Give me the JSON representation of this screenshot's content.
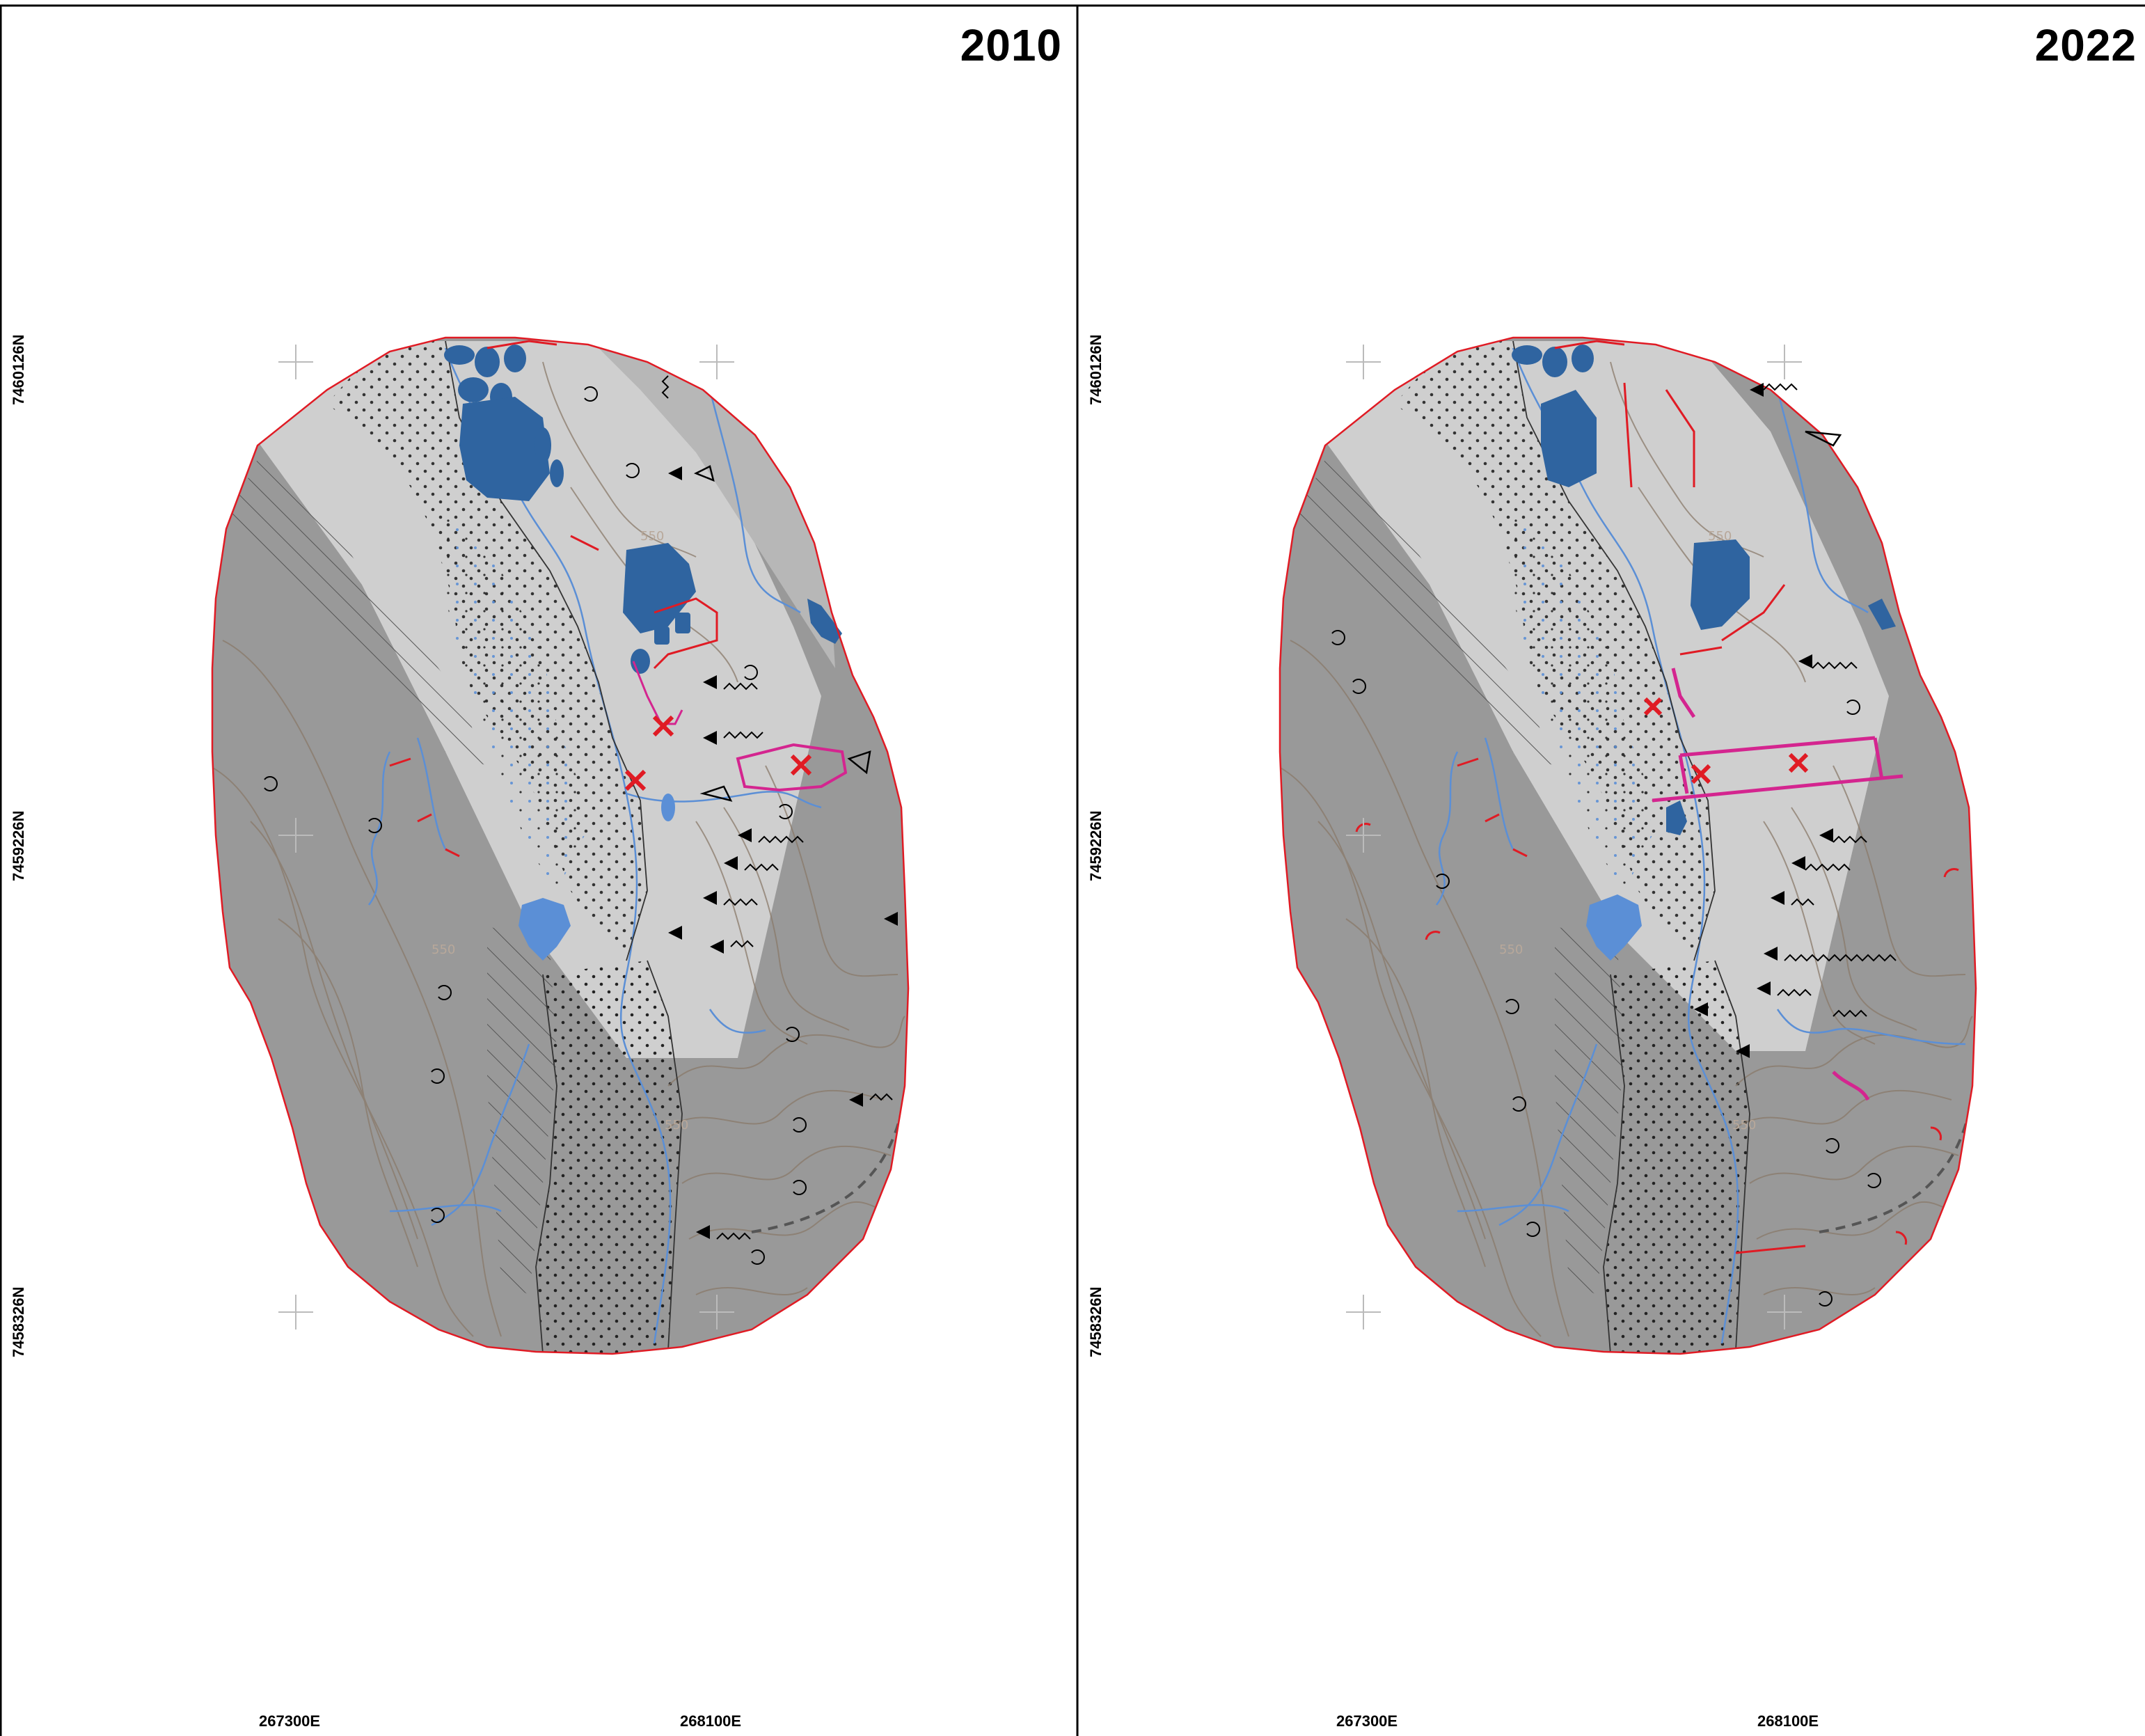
{
  "panels": [
    {
      "year": "2010",
      "northings": [
        "7460126N",
        "7459226N",
        "7458326N"
      ],
      "eastings": [
        "267300E",
        "268100E"
      ],
      "contour_labels": [
        "550",
        "550",
        "550"
      ]
    },
    {
      "year": "2022",
      "northings": [
        "7460126N",
        "7459226N",
        "7458326N"
      ],
      "eastings": [
        "267300E",
        "268100E"
      ],
      "contour_labels": [
        "550",
        "550",
        "550"
      ]
    }
  ],
  "colors": {
    "outer_terrain": "#999999",
    "inner_terrain": "#cfcfcf",
    "mid_terrain": "#bdbdbd",
    "water_body": "#2f64a0",
    "water_light": "#5b8fd6",
    "stream": "#5b8fd6",
    "contour": "#8a7a6a",
    "boundary": "#e01b24",
    "mining_symbol": "#e01b24",
    "landslide_outline": "#d4258f"
  }
}
